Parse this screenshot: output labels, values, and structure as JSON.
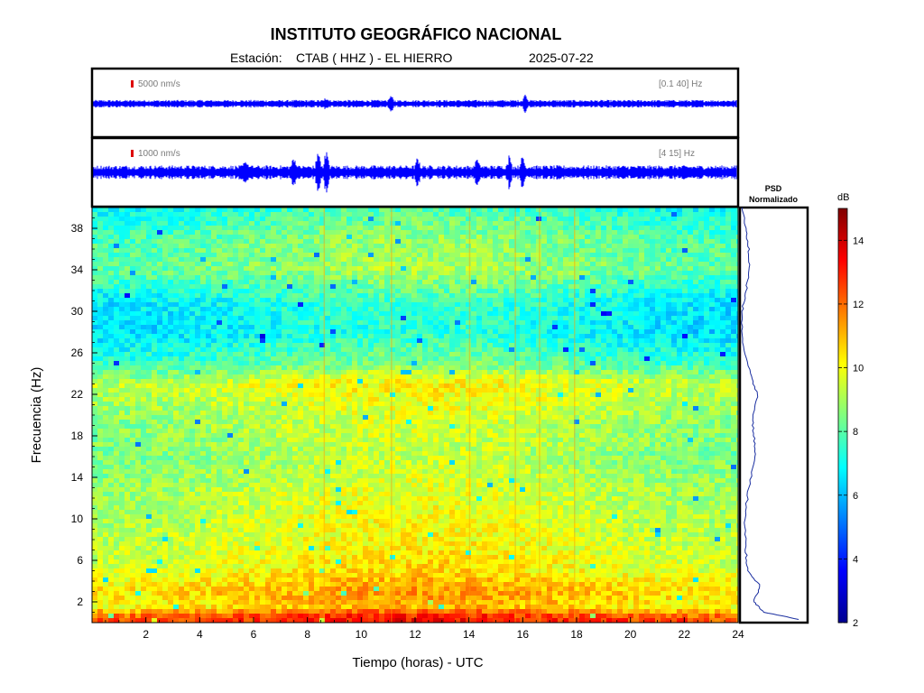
{
  "header": {
    "institution": "INSTITUTO GEOGRÁFICO NACIONAL",
    "station_label": "Estación:",
    "station": "CTAB ( HHZ ) - EL HIERRO",
    "date": "2025-07-22"
  },
  "colors": {
    "trace": "#0000ff",
    "scale_bar": "#dd0000",
    "psd_line": "#1a2ea0",
    "frame": "#000000"
  },
  "chart_data": [
    {
      "type": "line",
      "panel": "waveform-broadband",
      "amplitude_scale": "5000 nm/s",
      "band": "[0.1 40] Hz",
      "x_range": [
        0,
        24
      ],
      "bursts": [
        {
          "x": 8.7,
          "amp": 0.15
        },
        {
          "x": 11.1,
          "amp": 0.25
        },
        {
          "x": 16.1,
          "amp": 0.35
        }
      ]
    },
    {
      "type": "line",
      "panel": "waveform-filtered",
      "amplitude_scale": "1000 nm/s",
      "band": "[4 15] Hz",
      "x_range": [
        0,
        24
      ],
      "bursts": [
        {
          "x": 5.7,
          "amp": 0.3
        },
        {
          "x": 7.5,
          "amp": 0.45
        },
        {
          "x": 8.4,
          "amp": 0.7
        },
        {
          "x": 8.7,
          "amp": 0.85
        },
        {
          "x": 12.1,
          "amp": 0.4
        },
        {
          "x": 14.3,
          "amp": 0.4
        },
        {
          "x": 15.5,
          "amp": 0.5
        },
        {
          "x": 16.0,
          "amp": 0.55
        }
      ]
    },
    {
      "type": "heatmap",
      "panel": "spectrogram",
      "xlabel": "Tiempo (horas) - UTC",
      "ylabel": "Frecuencia  (Hz)",
      "xlim": [
        0,
        24
      ],
      "ylim": [
        0,
        40
      ],
      "xticks": [
        2,
        4,
        6,
        8,
        10,
        12,
        14,
        16,
        18,
        20,
        22,
        24
      ],
      "yticks": [
        2,
        6,
        10,
        14,
        18,
        22,
        26,
        30,
        34,
        38
      ],
      "colormap": "jet",
      "color_range_db": [
        2,
        15
      ],
      "frequency_profile_db": [
        {
          "f": 0.5,
          "db": 12.8
        },
        {
          "f": 1.5,
          "db": 10.6
        },
        {
          "f": 3.0,
          "db": 11.0
        },
        {
          "f": 5.0,
          "db": 10.1
        },
        {
          "f": 8.0,
          "db": 9.7
        },
        {
          "f": 12.0,
          "db": 9.4
        },
        {
          "f": 16.0,
          "db": 8.9
        },
        {
          "f": 20.0,
          "db": 9.2
        },
        {
          "f": 23.0,
          "db": 9.8
        },
        {
          "f": 25.0,
          "db": 8.0
        },
        {
          "f": 28.0,
          "db": 6.9
        },
        {
          "f": 31.0,
          "db": 7.2
        },
        {
          "f": 34.0,
          "db": 8.6
        },
        {
          "f": 37.0,
          "db": 8.3
        },
        {
          "f": 40.0,
          "db": 7.4
        }
      ],
      "vertical_streaks_hours": [
        8.6,
        11.1,
        14.0,
        15.7,
        16.6,
        17.9
      ]
    },
    {
      "type": "line",
      "panel": "psd-normalized",
      "title_line1": "PSD",
      "title_line2": "Normalizado",
      "profile": [
        {
          "f": 0.3,
          "v": 0.9
        },
        {
          "f": 1.0,
          "v": 0.35
        },
        {
          "f": 2.0,
          "v": 0.2
        },
        {
          "f": 3.5,
          "v": 0.3
        },
        {
          "f": 5.0,
          "v": 0.1
        },
        {
          "f": 7.0,
          "v": 0.08
        },
        {
          "f": 10.0,
          "v": 0.06
        },
        {
          "f": 13.0,
          "v": 0.12
        },
        {
          "f": 16.0,
          "v": 0.22
        },
        {
          "f": 18.0,
          "v": 0.2
        },
        {
          "f": 20.0,
          "v": 0.18
        },
        {
          "f": 22.0,
          "v": 0.26
        },
        {
          "f": 24.0,
          "v": 0.14
        },
        {
          "f": 27.0,
          "v": 0.03
        },
        {
          "f": 30.0,
          "v": 0.02
        },
        {
          "f": 32.0,
          "v": 0.08
        },
        {
          "f": 34.0,
          "v": 0.14
        },
        {
          "f": 36.0,
          "v": 0.12
        },
        {
          "f": 38.0,
          "v": 0.08
        },
        {
          "f": 40.0,
          "v": 0.02
        }
      ]
    },
    {
      "type": "colorbar",
      "unit": "dB",
      "range": [
        2,
        15
      ],
      "ticks": [
        2,
        4,
        6,
        8,
        10,
        12,
        14
      ]
    }
  ]
}
